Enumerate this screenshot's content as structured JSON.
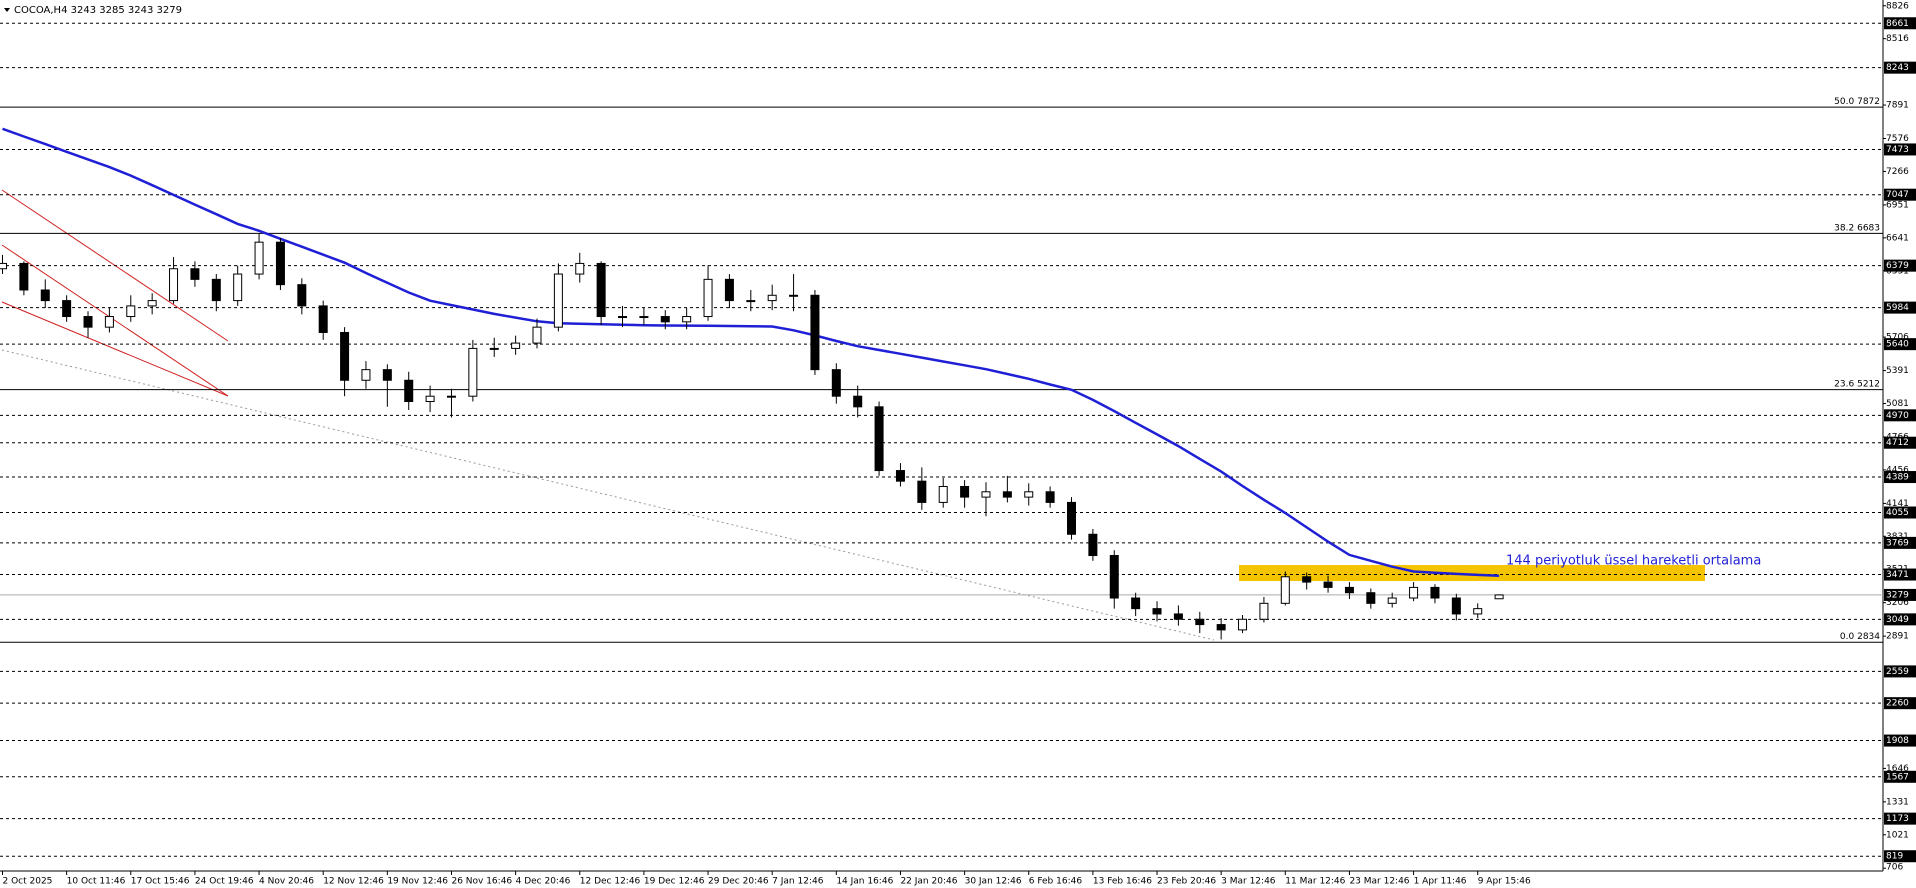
{
  "chart_data": {
    "type": "candlestick",
    "title": "COCOA,H4",
    "title_ohlc": [
      3243,
      3285,
      3243,
      3279
    ],
    "categories": [
      "2 Oct 2025",
      null,
      null,
      "10 Oct 11:46",
      null,
      null,
      "17 Oct 15:46",
      null,
      null,
      "24 Oct 19:46",
      null,
      null,
      "4 Nov 20:46",
      null,
      null,
      "12 Nov 12:46",
      null,
      null,
      "19 Nov 12:46",
      null,
      null,
      "26 Nov 16:46",
      null,
      null,
      "4 Dec 20:46",
      null,
      null,
      "12 Dec 12:46",
      null,
      null,
      "19 Dec 12:46",
      null,
      null,
      "29 Dec 20:46",
      null,
      null,
      "7 Jan 12:46",
      null,
      null,
      "14 Jan 16:46",
      null,
      null,
      "22 Jan 20:46",
      null,
      null,
      "30 Jan 12:46",
      null,
      null,
      "6 Feb 16:46",
      null,
      null,
      "13 Feb 16:46",
      null,
      null,
      "23 Feb 20:46",
      null,
      null,
      "3 Mar 12:46",
      null,
      null,
      "11 Mar 12:46",
      null,
      null,
      "23 Mar 12:46",
      null,
      null,
      "1 Apr 11:46",
      null,
      null,
      "9 Apr 15:46",
      null
    ],
    "candles": [
      [
        6350,
        6480,
        6300,
        6400
      ],
      [
        6400,
        6420,
        6100,
        6150
      ],
      [
        6150,
        6250,
        5980,
        6050
      ],
      [
        6050,
        6100,
        5850,
        5900
      ],
      [
        5900,
        5950,
        5700,
        5800
      ],
      [
        5800,
        5980,
        5750,
        5900
      ],
      [
        5900,
        6100,
        5850,
        6000
      ],
      [
        6000,
        6120,
        5920,
        6050
      ],
      [
        6050,
        6460,
        6020,
        6350
      ],
      [
        6350,
        6420,
        6180,
        6250
      ],
      [
        6250,
        6300,
        5950,
        6050
      ],
      [
        6050,
        6380,
        6000,
        6300
      ],
      [
        6300,
        6680,
        6250,
        6600
      ],
      [
        6600,
        6640,
        6150,
        6200
      ],
      [
        6200,
        6260,
        5920,
        6000
      ],
      [
        6000,
        6050,
        5680,
        5750
      ],
      [
        5750,
        5800,
        5150,
        5300
      ],
      [
        5300,
        5480,
        5220,
        5400
      ],
      [
        5400,
        5450,
        5050,
        5300
      ],
      [
        5300,
        5380,
        5020,
        5100
      ],
      [
        5100,
        5250,
        5000,
        5150
      ],
      [
        5150,
        5220,
        4950,
        5150
      ],
      [
        5150,
        5680,
        5100,
        5600
      ],
      [
        5600,
        5700,
        5520,
        5600
      ],
      [
        5600,
        5720,
        5540,
        5650
      ],
      [
        5650,
        5880,
        5600,
        5800
      ],
      [
        5800,
        6400,
        5760,
        6300
      ],
      [
        6300,
        6500,
        6220,
        6400
      ],
      [
        6400,
        6420,
        5820,
        5900
      ],
      [
        5900,
        6000,
        5800,
        5900
      ],
      [
        5900,
        5980,
        5820,
        5900
      ],
      [
        5900,
        5960,
        5780,
        5850
      ],
      [
        5850,
        5980,
        5780,
        5900
      ],
      [
        5900,
        6380,
        5860,
        6250
      ],
      [
        6250,
        6300,
        5980,
        6050
      ],
      [
        6050,
        6150,
        5950,
        6050
      ],
      [
        6050,
        6200,
        5960,
        6100
      ],
      [
        6100,
        6300,
        5950,
        6100
      ],
      [
        6100,
        6150,
        5350,
        5400
      ],
      [
        5400,
        5460,
        5080,
        5150
      ],
      [
        5150,
        5250,
        4950,
        5050
      ],
      [
        5050,
        5100,
        4400,
        4450
      ],
      [
        4450,
        4520,
        4300,
        4350
      ],
      [
        4350,
        4480,
        4080,
        4150
      ],
      [
        4150,
        4380,
        4100,
        4300
      ],
      [
        4300,
        4360,
        4100,
        4200
      ],
      [
        4200,
        4340,
        4020,
        4250
      ],
      [
        4250,
        4400,
        4150,
        4200
      ],
      [
        4200,
        4330,
        4120,
        4250
      ],
      [
        4250,
        4300,
        4100,
        4150
      ],
      [
        4150,
        4200,
        3800,
        3850
      ],
      [
        3850,
        3900,
        3600,
        3650
      ],
      [
        3650,
        3700,
        3150,
        3250
      ],
      [
        3250,
        3300,
        3080,
        3150
      ],
      [
        3150,
        3220,
        3030,
        3100
      ],
      [
        3100,
        3180,
        2990,
        3050
      ],
      [
        3050,
        3120,
        2920,
        3000
      ],
      [
        3000,
        3060,
        2860,
        2950
      ],
      [
        2950,
        3090,
        2920,
        3050
      ],
      [
        3050,
        3260,
        3020,
        3200
      ],
      [
        3200,
        3500,
        3180,
        3450
      ],
      [
        3450,
        3490,
        3330,
        3400
      ],
      [
        3400,
        3460,
        3300,
        3350
      ],
      [
        3350,
        3400,
        3240,
        3300
      ],
      [
        3300,
        3340,
        3150,
        3200
      ],
      [
        3200,
        3300,
        3160,
        3250
      ],
      [
        3250,
        3400,
        3220,
        3350
      ],
      [
        3350,
        3380,
        3200,
        3250
      ],
      [
        3250,
        3290,
        3040,
        3100
      ],
      [
        3100,
        3200,
        3060,
        3150
      ],
      [
        3243,
        3285,
        3243,
        3279
      ]
    ],
    "ema": {
      "color": "#1f1fd6",
      "values": [
        7667,
        7595,
        7523,
        7451,
        7379,
        7307,
        7227,
        7136,
        7045,
        6954,
        6863,
        6772,
        6707,
        6632,
        6557,
        6482,
        6407,
        6310,
        6218,
        6126,
        6049,
        6008,
        5966,
        5925,
        5890,
        5855,
        5836,
        5832,
        5827,
        5822,
        5818,
        5816,
        5815,
        5813,
        5811,
        5808,
        5806,
        5770,
        5722,
        5670,
        5621,
        5585,
        5549,
        5513,
        5477,
        5441,
        5404,
        5359,
        5314,
        5260,
        5210,
        5115,
        5010,
        4900,
        4790,
        4680,
        4560,
        4440,
        4305,
        4175,
        4050,
        3915,
        3780,
        3656,
        3600,
        3545,
        3500,
        3488,
        3477,
        3468,
        3459
      ]
    },
    "annotation": "144 periyotluk üssel hareketli ortalama",
    "ylim": [
      680,
      8880
    ],
    "yticks": [
      8826,
      8516,
      7891,
      7576,
      7266,
      6951,
      6641,
      6331,
      5706,
      5391,
      5081,
      4766,
      4456,
      4141,
      3831,
      3521,
      3206,
      2891,
      1646,
      1331,
      1021,
      706
    ],
    "levels": [
      8661,
      8243,
      7473,
      7047,
      6379,
      5984,
      5640,
      4970,
      4712,
      4389,
      4055,
      3769,
      3471,
      3049,
      2559,
      2260,
      1908,
      1567,
      1173,
      819
    ],
    "current_price": 3279,
    "fib": [
      {
        "ratio": "50.0",
        "value": 7872
      },
      {
        "ratio": "38.2",
        "value": 6683
      },
      {
        "ratio": "23.6",
        "value": 5212
      },
      {
        "ratio": "0.0",
        "value": 2834
      }
    ]
  }
}
